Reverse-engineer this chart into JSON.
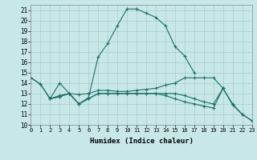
{
  "bg_color": "#c8e8e8",
  "grid_color": "#a8cccc",
  "line_color": "#1a7068",
  "xlabel": "Humidex (Indice chaleur)",
  "xlim": [
    0,
    23
  ],
  "ylim": [
    10,
    21.5
  ],
  "xticks": [
    0,
    1,
    2,
    3,
    4,
    5,
    6,
    7,
    8,
    9,
    10,
    11,
    12,
    13,
    14,
    15,
    16,
    17,
    18,
    19,
    20,
    21,
    22,
    23
  ],
  "yticks": [
    10,
    11,
    12,
    13,
    14,
    15,
    16,
    17,
    18,
    19,
    20,
    21
  ],
  "lines": [
    {
      "x": [
        0,
        1,
        2,
        3,
        4,
        5,
        6,
        7,
        8,
        9,
        10,
        11,
        12,
        13,
        14,
        15,
        16,
        17
      ],
      "y": [
        14.5,
        13.9,
        12.5,
        14.0,
        13.0,
        12.0,
        12.6,
        16.5,
        17.8,
        19.5,
        21.1,
        21.1,
        20.7,
        20.3,
        19.5,
        17.5,
        16.6,
        15.0
      ]
    },
    {
      "x": [
        2,
        3,
        4,
        5,
        6,
        7,
        8,
        9,
        10,
        11,
        12,
        13,
        14,
        15,
        16,
        17,
        18,
        19,
        20
      ],
      "y": [
        12.5,
        12.8,
        13.0,
        12.9,
        13.0,
        13.3,
        13.3,
        13.2,
        13.2,
        13.3,
        13.4,
        13.5,
        13.8,
        14.0,
        14.5,
        14.5,
        14.5,
        14.5,
        13.5
      ]
    },
    {
      "x": [
        0,
        1,
        2,
        3,
        4,
        5,
        6,
        7,
        8,
        9,
        10,
        11,
        12,
        13,
        14,
        15,
        16,
        17,
        18,
        19,
        20,
        21,
        22,
        23
      ],
      "y": [
        14.5,
        13.9,
        12.5,
        12.7,
        13.0,
        12.0,
        12.5,
        13.0,
        13.0,
        13.0,
        13.0,
        13.0,
        13.0,
        13.0,
        12.8,
        12.5,
        12.2,
        12.0,
        11.8,
        11.6,
        13.5,
        11.9,
        11.0,
        10.4
      ]
    },
    {
      "x": [
        2,
        3,
        4,
        5,
        6,
        7,
        8,
        9,
        10,
        11,
        12,
        13,
        14,
        15,
        16,
        17,
        18,
        19,
        20,
        21,
        22,
        23
      ],
      "y": [
        12.5,
        12.7,
        13.0,
        12.0,
        12.5,
        13.0,
        13.0,
        13.0,
        13.0,
        13.0,
        13.0,
        13.0,
        13.0,
        13.0,
        12.8,
        12.5,
        12.2,
        12.0,
        13.5,
        12.0,
        11.0,
        10.4
      ]
    }
  ]
}
